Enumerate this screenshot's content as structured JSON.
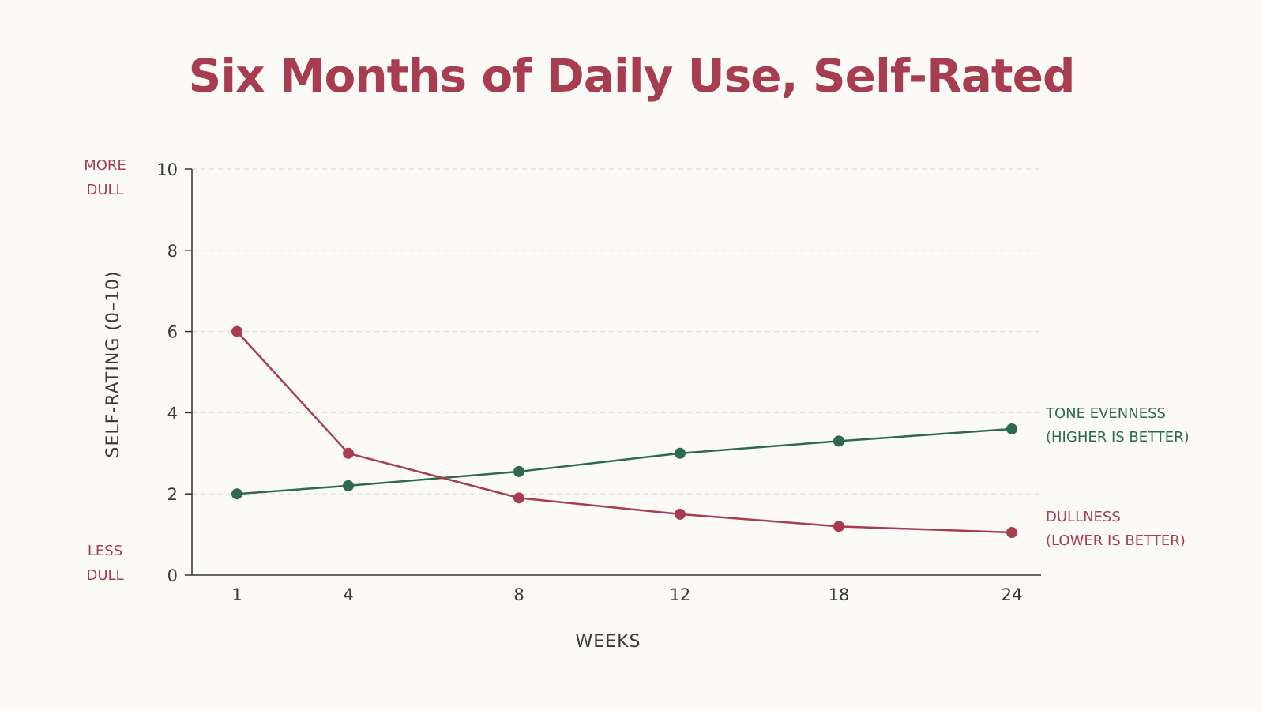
{
  "colors": {
    "background": "#fcfaf6",
    "title": "#a83c50",
    "dullness": "#a83c50",
    "tone_evenness": "#2e6b4e",
    "axis": "#333333",
    "grid": "#e2ddd6",
    "text": "#3a3a3a"
  },
  "chart_data": {
    "type": "line",
    "title": "Six Months of Daily Use, Self-Rated",
    "xlabel": "WEEKS",
    "ylabel": "SELF-RATING (0–10)",
    "x": [
      1,
      4,
      8,
      12,
      18,
      24
    ],
    "x_tick_labels": [
      "1",
      "4",
      "8",
      "12",
      "18",
      "24"
    ],
    "ylim": [
      0,
      10
    ],
    "y_ticks": [
      0,
      2,
      4,
      6,
      8,
      10
    ],
    "y_tick_labels": [
      "0",
      "2",
      "4",
      "6",
      "8",
      "10"
    ],
    "grid": true,
    "y_top_note": [
      "MORE",
      "DULL"
    ],
    "y_bottom_note": [
      "LESS",
      "DULL"
    ],
    "series": [
      {
        "name": "TONE EVENNESS",
        "sublabel": "(HIGHER IS BETTER)",
        "color": "#2e6b4e",
        "values": [
          2.0,
          2.2,
          2.55,
          3.0,
          3.3,
          3.6
        ]
      },
      {
        "name": "DULLNESS",
        "sublabel": "(LOWER IS BETTER)",
        "color": "#a83c50",
        "values": [
          6.0,
          3.0,
          1.9,
          1.5,
          1.2,
          1.05
        ]
      }
    ]
  }
}
